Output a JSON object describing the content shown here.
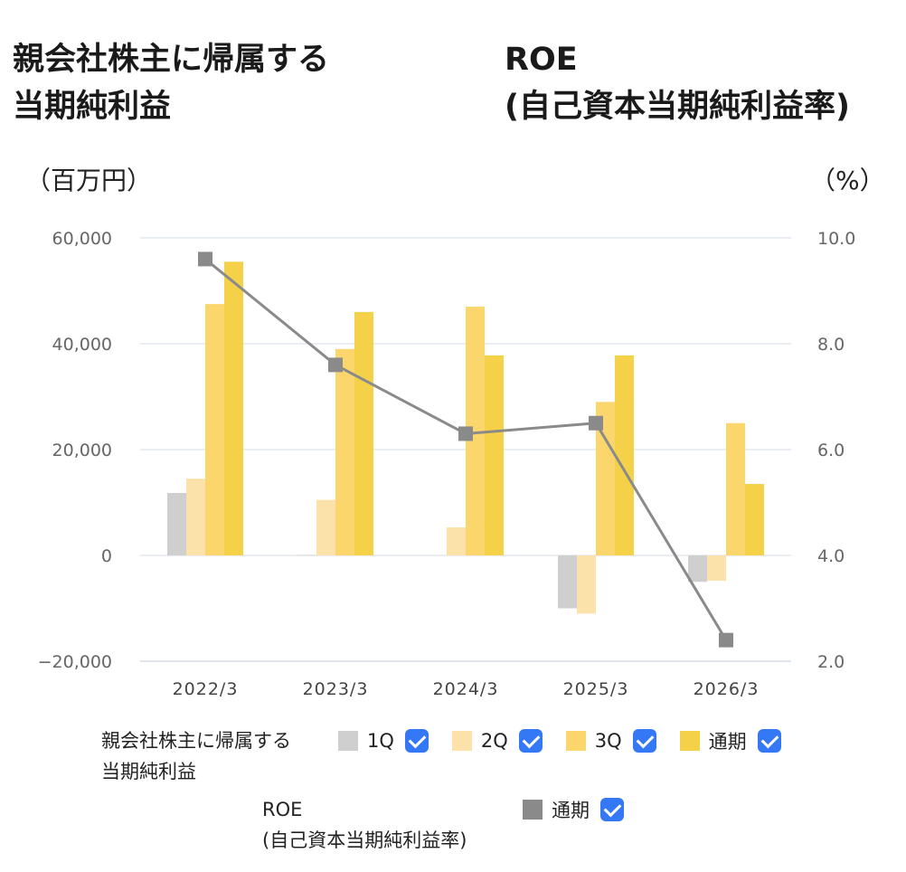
{
  "titles": {
    "left_line1": "親会社株主に帰属する",
    "left_line2": "当期純利益",
    "right_line1": "ROE",
    "right_line2": "(自己資本当期純利益率)"
  },
  "units": {
    "left": "（百万円）",
    "right": "（%）"
  },
  "legend": {
    "bar_group_line1": "親会社株主に帰属する",
    "bar_group_line2": "当期純利益",
    "line_group_line1": "ROE",
    "line_group_line2": "(自己資本当期純利益率)",
    "bar_items": [
      {
        "name": "1Q",
        "color": "#cfcfcf",
        "checked": true
      },
      {
        "name": "2Q",
        "color": "#fbe2aa",
        "checked": true
      },
      {
        "name": "3Q",
        "color": "#fad66d",
        "checked": true
      },
      {
        "name": "通期",
        "color": "#f5d14a",
        "checked": true
      }
    ],
    "line_items": [
      {
        "name": "通期",
        "color": "#8a8a8a",
        "checked": true
      }
    ]
  },
  "chart_data": {
    "type": "bar",
    "categories": [
      "2022/3",
      "2023/3",
      "2024/3",
      "2025/3",
      "2026/3"
    ],
    "series": [
      {
        "name": "1Q",
        "color": "#cfcfcf",
        "values": [
          11800,
          100,
          0,
          -10000,
          -5000
        ]
      },
      {
        "name": "2Q",
        "color": "#fbe2aa",
        "values": [
          14500,
          10500,
          5300,
          -11000,
          -4800
        ]
      },
      {
        "name": "3Q",
        "color": "#fad66d",
        "values": [
          47500,
          39000,
          47000,
          29000,
          25000
        ]
      },
      {
        "name": "通期",
        "color": "#f5d14a",
        "values": [
          55500,
          46000,
          37800,
          37800,
          13500
        ]
      }
    ],
    "line_series": [
      {
        "name": "通期",
        "color": "#8a8a8a",
        "values": [
          9.6,
          7.6,
          6.3,
          6.5,
          2.4
        ]
      }
    ],
    "y_left": {
      "min": -20000,
      "max": 60000,
      "ticks": [
        -20000,
        0,
        20000,
        40000,
        60000
      ],
      "tick_labels": [
        "−20,000",
        "0",
        "20,000",
        "40,000",
        "60,000"
      ]
    },
    "y_right": {
      "min": 2.0,
      "max": 10.0,
      "ticks": [
        2.0,
        4.0,
        6.0,
        8.0,
        10.0
      ],
      "tick_labels": [
        "2.0",
        "4.0",
        "6.0",
        "8.0",
        "10.0"
      ]
    },
    "grid": true,
    "legend": "bottom"
  }
}
